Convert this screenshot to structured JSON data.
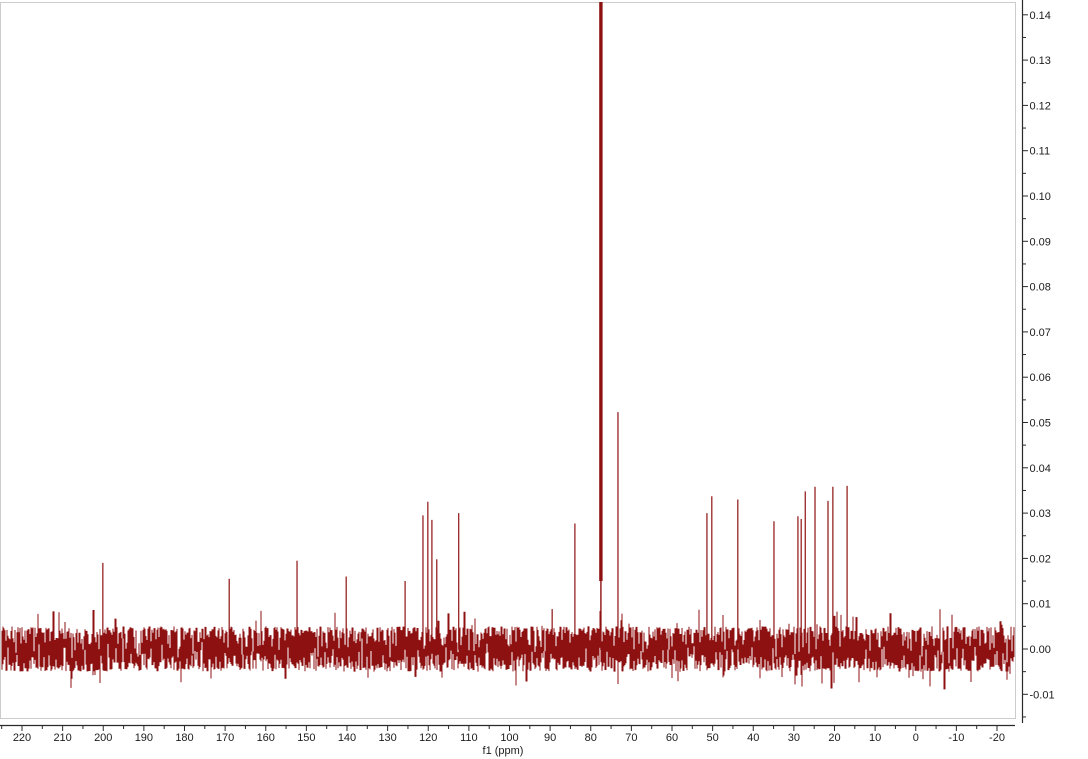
{
  "chart_data": {
    "type": "line",
    "subtype": "13C NMR spectrum trace",
    "title": "",
    "xlabel": "f1 (ppm)",
    "ylabel": "",
    "grid": false,
    "legend": false,
    "trace_color": "#8e1111",
    "axis_color": "#2a2a2a",
    "frame_color": "#cccccc",
    "background_color": "#ffffff",
    "x_axis": {
      "reversed": true,
      "visible_range": [
        225.4,
        -24.7
      ],
      "tick_step": 10,
      "minor_tick_step": 5,
      "tick_labels": [
        "220",
        "210",
        "200",
        "190",
        "180",
        "170",
        "160",
        "150",
        "140",
        "130",
        "120",
        "110",
        "100",
        "90",
        "80",
        "70",
        "60",
        "50",
        "40",
        "30",
        "20",
        "10",
        "0",
        "-10",
        "-20"
      ]
    },
    "y_axis": {
      "visible_range": [
        -0.0155,
        0.1428
      ],
      "tick_step": 0.01,
      "minor_tick_step": 0.005,
      "tick_labels": [
        "0.14",
        "0.13",
        "0.12",
        "0.11",
        "0.10",
        "0.09",
        "0.08",
        "0.07",
        "0.06",
        "0.05",
        "0.04",
        "0.03",
        "0.02",
        "0.01",
        "0.00",
        "-0.01"
      ]
    },
    "noise": {
      "baseline": 0.0,
      "typical_amplitude": 0.005,
      "max_amplitude": 0.009
    },
    "peaks": [
      {
        "ppm": 200.1,
        "intensity": 0.019
      },
      {
        "ppm": 169.0,
        "intensity": 0.0155
      },
      {
        "ppm": 152.3,
        "intensity": 0.0195
      },
      {
        "ppm": 140.2,
        "intensity": 0.016
      },
      {
        "ppm": 125.7,
        "intensity": 0.015
      },
      {
        "ppm": 121.3,
        "intensity": 0.0295
      },
      {
        "ppm": 120.1,
        "intensity": 0.0325
      },
      {
        "ppm": 119.1,
        "intensity": 0.0285
      },
      {
        "ppm": 117.9,
        "intensity": 0.0198
      },
      {
        "ppm": 112.5,
        "intensity": 0.03
      },
      {
        "ppm": 89.5,
        "intensity": 0.0088
      },
      {
        "ppm": 83.9,
        "intensity": 0.0277
      },
      {
        "ppm": 77.5,
        "intensity": 0.143,
        "clipped": true,
        "note": "tall solvent peak, off scale at top"
      },
      {
        "ppm": 73.3,
        "intensity": 0.0523
      },
      {
        "ppm": 51.4,
        "intensity": 0.03
      },
      {
        "ppm": 50.2,
        "intensity": 0.0337
      },
      {
        "ppm": 43.8,
        "intensity": 0.033
      },
      {
        "ppm": 34.9,
        "intensity": 0.0282
      },
      {
        "ppm": 29.0,
        "intensity": 0.0293
      },
      {
        "ppm": 28.2,
        "intensity": 0.0287
      },
      {
        "ppm": 27.2,
        "intensity": 0.0348
      },
      {
        "ppm": 24.8,
        "intensity": 0.0358
      },
      {
        "ppm": 21.6,
        "intensity": 0.0327
      },
      {
        "ppm": 20.4,
        "intensity": 0.0358
      },
      {
        "ppm": 16.9,
        "intensity": 0.036
      }
    ]
  }
}
